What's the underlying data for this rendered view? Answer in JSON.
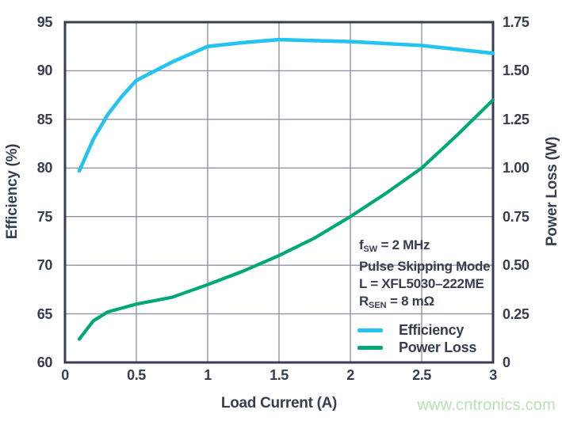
{
  "colors": {
    "frame": "#363e4f",
    "grid": "#9096a5",
    "text": "#363e4f",
    "efficiency": "#24c3f1",
    "power_loss": "#00a878",
    "watermark": "#b7e3b2",
    "background": "#ffffff"
  },
  "axes": {
    "x": {
      "label": "Load Current (A)",
      "ticks": [
        {
          "v": 0,
          "t": "0"
        },
        {
          "v": 0.5,
          "t": "0.5"
        },
        {
          "v": 1,
          "t": "1"
        },
        {
          "v": 1.5,
          "t": "1.5"
        },
        {
          "v": 2,
          "t": "2"
        },
        {
          "v": 2.5,
          "t": "2.5"
        },
        {
          "v": 3,
          "t": "3"
        }
      ]
    },
    "y_left": {
      "label": "Efficiency (%)",
      "ticks": [
        {
          "v": 95,
          "t": "95"
        },
        {
          "v": 90,
          "t": "90"
        },
        {
          "v": 85,
          "t": "85"
        },
        {
          "v": 80,
          "t": "80"
        },
        {
          "v": 75,
          "t": "75"
        },
        {
          "v": 70,
          "t": "70"
        },
        {
          "v": 65,
          "t": "65"
        },
        {
          "v": 60,
          "t": "60"
        }
      ]
    },
    "y_right": {
      "label": "Power Loss (W)",
      "ticks": [
        {
          "v": 1.75,
          "t": "1.75"
        },
        {
          "v": 1.5,
          "t": "1.50"
        },
        {
          "v": 1.25,
          "t": "1.25"
        },
        {
          "v": 1,
          "t": "1.00"
        },
        {
          "v": 0.75,
          "t": "0.75"
        },
        {
          "v": 0.5,
          "t": "0.50"
        },
        {
          "v": 0.25,
          "t": "0.25"
        },
        {
          "v": 0,
          "t": "0"
        }
      ]
    }
  },
  "annotation": {
    "lines": [
      {
        "pre": "f",
        "sub": "SW",
        "post": " = 2 MHz"
      },
      {
        "pre": "",
        "sub": "",
        "post": "Pulse Skipping Mode"
      },
      {
        "pre": "",
        "sub": "",
        "post": "L = XFL5030–222ME"
      },
      {
        "pre": "R",
        "sub": "SEN",
        "post": " = 8 mΩ"
      }
    ]
  },
  "legend": {
    "items": [
      {
        "label": "Efficiency",
        "color": "#24c3f1"
      },
      {
        "label": "Power Loss",
        "color": "#00a878"
      }
    ]
  },
  "watermark": {
    "text": "www.cntronics.com",
    "color": "#b7e3b2"
  },
  "chart_data": {
    "type": "line",
    "title": "",
    "xlabel": "Load Current (A)",
    "ylabel_left": "Efficiency (%)",
    "ylabel_right": "Power Loss (W)",
    "xlim": [
      0,
      3
    ],
    "ylim_left": [
      60,
      95
    ],
    "ylim_right": [
      0,
      1.75
    ],
    "x_gridlines": [
      0.5,
      1,
      1.5,
      2,
      2.5
    ],
    "y_left_gridlines": [
      65,
      70,
      75,
      80,
      85,
      90
    ],
    "grid": true,
    "legend_position": "lower right",
    "annotation_text": [
      "fSW = 2 MHz",
      "Pulse Skipping Mode",
      "L = XFL5030–222ME",
      "RSEN = 8 mΩ"
    ],
    "series": [
      {
        "name": "Efficiency",
        "axis": "left",
        "color": "#24c3f1",
        "x": [
          0.1,
          0.2,
          0.3,
          0.4,
          0.5,
          0.75,
          1.0,
          1.25,
          1.5,
          2.0,
          2.5,
          3.0
        ],
        "y": [
          79.7,
          83.0,
          85.5,
          87.4,
          89.0,
          90.9,
          92.5,
          92.9,
          93.2,
          93.0,
          92.6,
          91.8
        ]
      },
      {
        "name": "Power Loss",
        "axis": "right",
        "color": "#00a878",
        "x": [
          0.1,
          0.2,
          0.3,
          0.5,
          0.75,
          1.0,
          1.25,
          1.5,
          1.75,
          2.0,
          2.25,
          2.5,
          2.75,
          3.0
        ],
        "y": [
          0.12,
          0.215,
          0.26,
          0.3,
          0.335,
          0.4,
          0.47,
          0.55,
          0.64,
          0.75,
          0.87,
          1.0,
          1.17,
          1.35
        ]
      }
    ]
  }
}
